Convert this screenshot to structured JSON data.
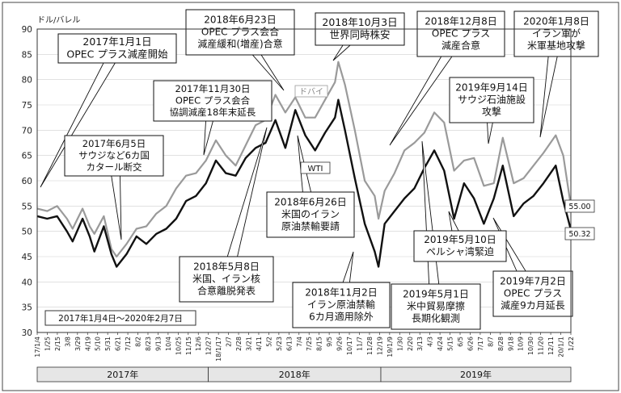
{
  "chart_data": {
    "type": "line",
    "ylabel": "ドル/バレル",
    "ylim": [
      30,
      90
    ],
    "y_ticks": [
      "30",
      "35",
      "40",
      "45",
      "50",
      "55",
      "60",
      "65",
      "70",
      "75",
      "80",
      "85",
      "90"
    ],
    "date_range_note": "2017年1月4日～2020年2月7日",
    "years": [
      "2017年",
      "2018年",
      "2019年"
    ],
    "x_ticks": [
      "17/1/4",
      "1/25",
      "2/15",
      "3/8",
      "3/29",
      "4/19",
      "5/10",
      "5/31",
      "6/21",
      "7/12",
      "8/2",
      "8/23",
      "9/13",
      "10/4",
      "10/25",
      "11/15",
      "12/6",
      "12/27",
      "18/1/17",
      "2/7",
      "2/28",
      "3/21",
      "4/11",
      "5/2",
      "5/23",
      "6/13",
      "7/4",
      "7/25",
      "8/15",
      "9/5",
      "9/26",
      "10/17",
      "11/7",
      "11/28",
      "12/19",
      "19/1/9",
      "1/30",
      "2/20",
      "3/13",
      "4/3",
      "4/24",
      "5/15",
      "6/5",
      "6/26",
      "7/17",
      "8/7",
      "8/28",
      "9/18",
      "10/9",
      "10/30",
      "11/20",
      "12/11",
      "20/1/1",
      "1/22"
    ],
    "series": [
      {
        "name": "ドバイ",
        "color": "#9a9a9a",
        "end_label": "55.00",
        "points": [
          [
            "2017-01-04",
            54.5
          ],
          [
            "2017-01-25",
            54.0
          ],
          [
            "2017-02-15",
            55.0
          ],
          [
            "2017-03-08",
            52.5
          ],
          [
            "2017-03-20",
            50.5
          ],
          [
            "2017-04-10",
            54.5
          ],
          [
            "2017-04-25",
            51.0
          ],
          [
            "2017-05-05",
            49.5
          ],
          [
            "2017-05-25",
            53.0
          ],
          [
            "2017-06-10",
            46.5
          ],
          [
            "2017-06-21",
            45.0
          ],
          [
            "2017-07-12",
            47.5
          ],
          [
            "2017-08-02",
            50.5
          ],
          [
            "2017-08-23",
            51.0
          ],
          [
            "2017-09-13",
            53.5
          ],
          [
            "2017-10-04",
            55.0
          ],
          [
            "2017-10-25",
            58.5
          ],
          [
            "2017-11-15",
            61.0
          ],
          [
            "2017-12-06",
            61.5
          ],
          [
            "2017-12-27",
            64.0
          ],
          [
            "2018-01-17",
            68.0
          ],
          [
            "2018-02-07",
            65.0
          ],
          [
            "2018-02-28",
            63.0
          ],
          [
            "2018-03-21",
            67.0
          ],
          [
            "2018-04-11",
            71.0
          ],
          [
            "2018-05-02",
            72.0
          ],
          [
            "2018-05-23",
            77.0
          ],
          [
            "2018-06-13",
            73.5
          ],
          [
            "2018-07-04",
            76.5
          ],
          [
            "2018-07-25",
            72.5
          ],
          [
            "2018-08-15",
            72.5
          ],
          [
            "2018-09-05",
            76.0
          ],
          [
            "2018-09-26",
            79.5
          ],
          [
            "2018-10-03",
            83.5
          ],
          [
            "2018-10-17",
            79.0
          ],
          [
            "2018-11-07",
            70.0
          ],
          [
            "2018-11-28",
            60.0
          ],
          [
            "2018-12-19",
            57.0
          ],
          [
            "2018-12-27",
            52.5
          ],
          [
            "2019-01-09",
            58.0
          ],
          [
            "2019-01-30",
            61.5
          ],
          [
            "2019-02-20",
            66.0
          ],
          [
            "2019-03-13",
            67.5
          ],
          [
            "2019-04-03",
            69.5
          ],
          [
            "2019-04-24",
            73.5
          ],
          [
            "2019-05-15",
            71.5
          ],
          [
            "2019-06-05",
            62.0
          ],
          [
            "2019-06-26",
            64.0
          ],
          [
            "2019-07-17",
            64.5
          ],
          [
            "2019-08-07",
            59.0
          ],
          [
            "2019-08-28",
            59.5
          ],
          [
            "2019-09-16",
            68.5
          ],
          [
            "2019-10-09",
            59.5
          ],
          [
            "2019-10-30",
            60.5
          ],
          [
            "2019-11-20",
            63.0
          ],
          [
            "2019-12-11",
            65.5
          ],
          [
            "2020-01-06",
            69.0
          ],
          [
            "2020-01-22",
            65.0
          ],
          [
            "2020-02-07",
            55.0
          ]
        ]
      },
      {
        "name": "WTI",
        "color": "#111111",
        "end_label": "50.32",
        "points": [
          [
            "2017-01-04",
            53.0
          ],
          [
            "2017-01-25",
            52.5
          ],
          [
            "2017-02-15",
            53.0
          ],
          [
            "2017-03-08",
            50.0
          ],
          [
            "2017-03-20",
            48.0
          ],
          [
            "2017-04-10",
            52.5
          ],
          [
            "2017-04-25",
            49.0
          ],
          [
            "2017-05-05",
            46.0
          ],
          [
            "2017-05-25",
            51.0
          ],
          [
            "2017-06-10",
            45.5
          ],
          [
            "2017-06-21",
            43.0
          ],
          [
            "2017-07-12",
            45.5
          ],
          [
            "2017-08-02",
            49.0
          ],
          [
            "2017-08-23",
            47.5
          ],
          [
            "2017-09-13",
            49.5
          ],
          [
            "2017-10-04",
            50.5
          ],
          [
            "2017-10-25",
            52.5
          ],
          [
            "2017-11-15",
            56.0
          ],
          [
            "2017-12-06",
            57.0
          ],
          [
            "2017-12-27",
            59.5
          ],
          [
            "2018-01-17",
            64.0
          ],
          [
            "2018-02-07",
            61.5
          ],
          [
            "2018-02-28",
            61.0
          ],
          [
            "2018-03-21",
            64.5
          ],
          [
            "2018-04-11",
            66.5
          ],
          [
            "2018-05-02",
            67.5
          ],
          [
            "2018-05-23",
            72.0
          ],
          [
            "2018-06-13",
            66.5
          ],
          [
            "2018-07-04",
            74.0
          ],
          [
            "2018-07-25",
            69.0
          ],
          [
            "2018-08-15",
            66.0
          ],
          [
            "2018-09-05",
            69.5
          ],
          [
            "2018-09-26",
            72.5
          ],
          [
            "2018-10-03",
            76.0
          ],
          [
            "2018-10-17",
            70.0
          ],
          [
            "2018-11-07",
            60.5
          ],
          [
            "2018-11-28",
            51.5
          ],
          [
            "2018-12-19",
            46.0
          ],
          [
            "2018-12-27",
            43.0
          ],
          [
            "2019-01-09",
            51.5
          ],
          [
            "2019-01-30",
            54.0
          ],
          [
            "2019-02-20",
            56.5
          ],
          [
            "2019-03-13",
            58.5
          ],
          [
            "2019-04-03",
            62.5
          ],
          [
            "2019-04-24",
            66.0
          ],
          [
            "2019-05-15",
            62.0
          ],
          [
            "2019-06-05",
            52.5
          ],
          [
            "2019-06-26",
            59.5
          ],
          [
            "2019-07-17",
            56.5
          ],
          [
            "2019-08-07",
            51.5
          ],
          [
            "2019-08-28",
            56.5
          ],
          [
            "2019-09-16",
            63.0
          ],
          [
            "2019-10-09",
            53.0
          ],
          [
            "2019-10-30",
            55.5
          ],
          [
            "2019-11-20",
            57.0
          ],
          [
            "2019-12-11",
            59.5
          ],
          [
            "2020-01-06",
            63.0
          ],
          [
            "2020-01-22",
            56.0
          ],
          [
            "2020-02-07",
            50.32
          ]
        ]
      }
    ],
    "series_labels": [
      "ドバイ",
      "WTI"
    ],
    "annotations": [
      {
        "lines": [
          "2017年1月1日",
          "OPEC プラス減産開始"
        ]
      },
      {
        "lines": [
          "2017年6月5日",
          "サウジなど6カ国",
          "カタール断交"
        ]
      },
      {
        "lines": [
          "2017年11月30日",
          "OPEC プラス会合",
          "協調減産18年末延長"
        ]
      },
      {
        "lines": [
          "2018年6月23日",
          "OPEC プラス会合",
          "減産緩和(増産)合意"
        ]
      },
      {
        "lines": [
          "2018年5月8日",
          "米国、イラン核",
          "合意離脱発表"
        ]
      },
      {
        "lines": [
          "2018年6月26日",
          "米国のイラン",
          "原油禁輸要請"
        ]
      },
      {
        "lines": [
          "2018年10月3日",
          "世界同時株安"
        ]
      },
      {
        "lines": [
          "2018年11月2日",
          "イラン原油禁輸",
          "6カ月適用除外"
        ]
      },
      {
        "lines": [
          "2018年12月8日",
          "OPEC プラス",
          "減産合意"
        ]
      },
      {
        "lines": [
          "2019年5月1日",
          "米中貿易摩擦",
          "長期化観測"
        ]
      },
      {
        "lines": [
          "2019年5月10日",
          "ペルシャ湾緊迫"
        ]
      },
      {
        "lines": [
          "2019年9月14日",
          "サウジ石油施設",
          "攻撃"
        ]
      },
      {
        "lines": [
          "2019年7月2日",
          "OPEC プラス",
          "減産9カ月延長"
        ]
      },
      {
        "lines": [
          "2020年1月8日",
          "イラン軍が",
          "米軍基地攻撃"
        ]
      }
    ]
  }
}
